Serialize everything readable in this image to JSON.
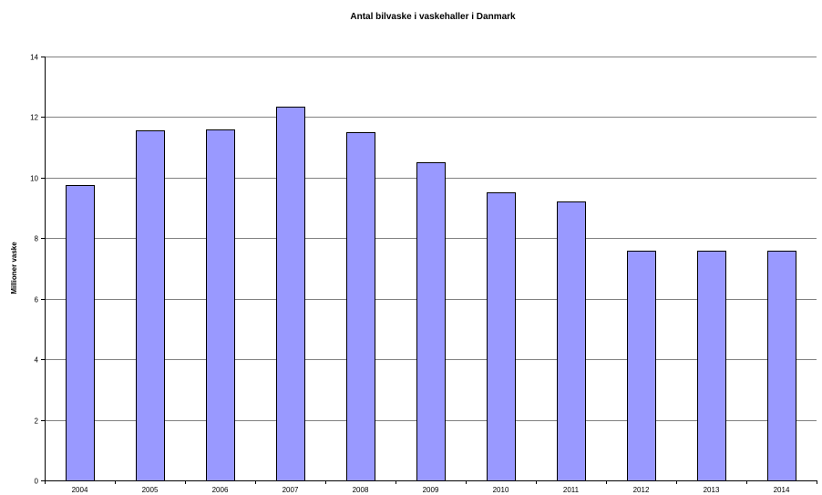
{
  "chart_data": {
    "type": "bar",
    "title": "Antal bilvaske i vaskehaller i Danmark",
    "xlabel": "",
    "ylabel": "Millioner  vaske",
    "categories": [
      "2004",
      "2005",
      "2006",
      "2007",
      "2008",
      "2009",
      "2010",
      "2011",
      "2012",
      "2013",
      "2014"
    ],
    "values": [
      9.75,
      11.55,
      11.6,
      12.35,
      11.5,
      10.5,
      9.5,
      9.2,
      7.6,
      7.6,
      7.6
    ],
    "ylim": [
      0,
      14
    ],
    "yticks": [
      0,
      2,
      4,
      6,
      8,
      10,
      12,
      14
    ],
    "grid": true,
    "legend": "none",
    "colors": {
      "bar": "#9999ff",
      "grid": "#808080"
    }
  }
}
